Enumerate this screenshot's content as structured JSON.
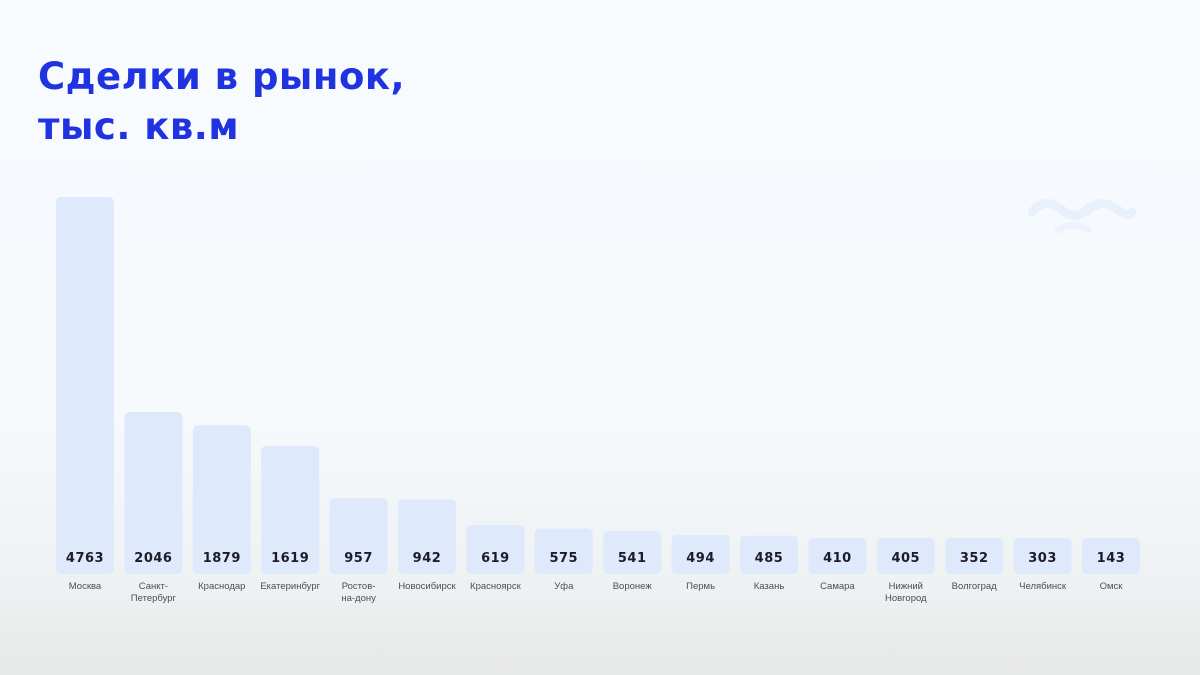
{
  "title_line1": "Сделки в рынок,",
  "title_line2": "тыс. кв.м",
  "logo_icon": "brand-logo-icon",
  "colors": {
    "title": "#2033e0",
    "bar": "#dfe9fc",
    "bar_text": "#1c1c2a"
  },
  "chart_data": {
    "type": "bar",
    "title": "Сделки в рынок, тыс. кв.м",
    "categories": [
      [
        "Москва"
      ],
      [
        "Санкт-",
        "Петербург"
      ],
      [
        "Краснодар"
      ],
      [
        "Екатеринбург"
      ],
      [
        "Ростов-",
        "на-дону"
      ],
      [
        "Новосибирск"
      ],
      [
        "Красноярск"
      ],
      [
        "Уфа"
      ],
      [
        "Воронеж"
      ],
      [
        "Пермь"
      ],
      [
        "Казань"
      ],
      [
        "Самара"
      ],
      [
        "Нижний",
        "Новгород"
      ],
      [
        "Волгоград"
      ],
      [
        "Челябинск"
      ],
      [
        "Омск"
      ]
    ],
    "values": [
      4763,
      2046,
      1879,
      1619,
      957,
      942,
      619,
      575,
      541,
      494,
      485,
      410,
      405,
      352,
      303,
      143
    ],
    "data_labels": true,
    "grid": false
  }
}
